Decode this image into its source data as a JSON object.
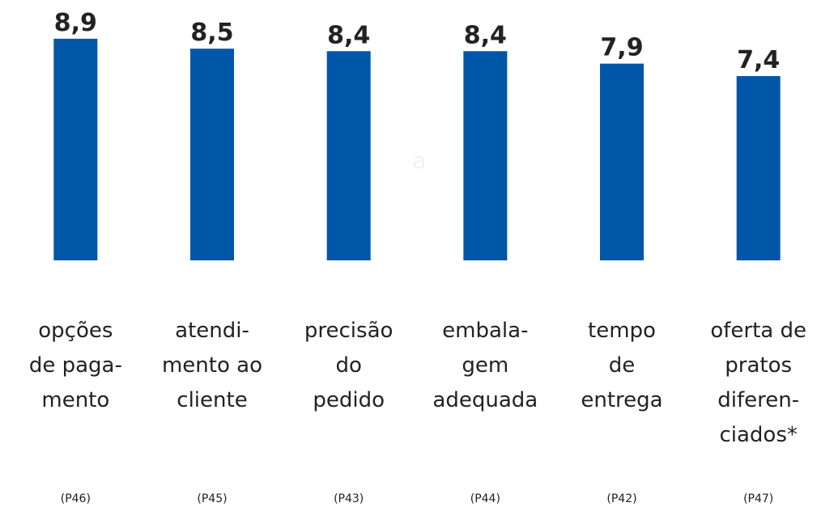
{
  "chart_data": {
    "type": "bar",
    "categories": [
      [
        "opções",
        "de paga-",
        "mento"
      ],
      [
        "atendi-",
        "mento ao",
        "cliente"
      ],
      [
        "precisão",
        "do",
        "pedido"
      ],
      [
        "embala-",
        "gem",
        "adequada"
      ],
      [
        "tempo",
        "de",
        "entrega"
      ],
      [
        "oferta de",
        "pratos",
        "diferen-",
        "ciados*"
      ]
    ],
    "codes": [
      "(P46)",
      "(P45)",
      "(P43)",
      "(P44)",
      "(P42)",
      "(P47)"
    ],
    "values": [
      8.9,
      8.5,
      8.4,
      8.4,
      7.9,
      7.4
    ],
    "value_labels": [
      "8,9",
      "8,5",
      "8,4",
      "8,4",
      "7,9",
      "7,4"
    ],
    "color": "#0057a8",
    "annotation": "a",
    "ylim": [
      0,
      10
    ]
  }
}
